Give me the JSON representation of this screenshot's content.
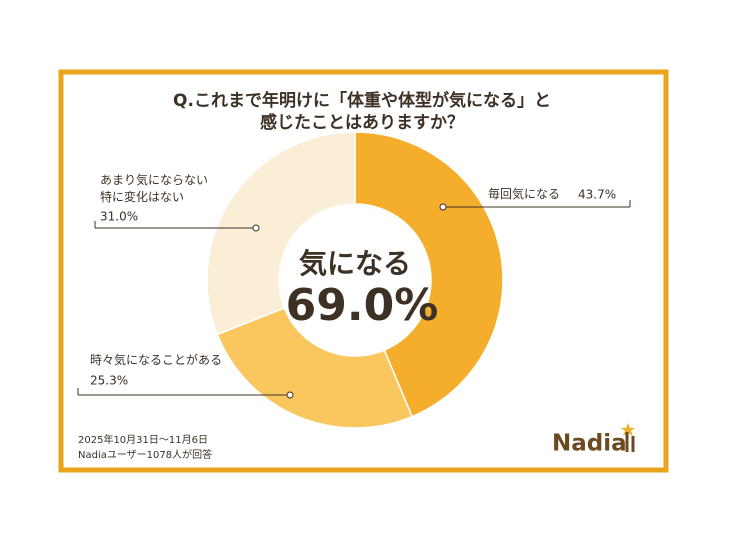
{
  "chart_data": {
    "type": "pie",
    "donut": true,
    "title_lines": [
      "Q.これまで年明けに「体重や体型が気になる」と",
      "感じたことはありますか？"
    ],
    "center_lines": [
      "気になる",
      "69.0%"
    ],
    "categories": [
      "毎回気になる",
      "時々気になることがある",
      "あまり気にならない\n特に変化はない"
    ],
    "values": [
      43.7,
      25.3,
      31.0
    ],
    "value_labels": [
      "43.7%",
      "25.3%",
      "31.0%"
    ],
    "colors": [
      "#f5ae2c",
      "#f9c75e",
      "#fbeed6"
    ],
    "footnotes": [
      "2025年10月31日～11月6日",
      "Nadiaユーザー1078人が回答"
    ],
    "logo": "Nadia"
  }
}
